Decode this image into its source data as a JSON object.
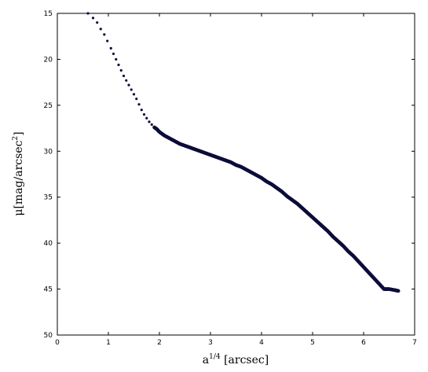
{
  "chart_data": {
    "type": "scatter",
    "title": "",
    "xlabel": "a",
    "xlabel_sup": "1/4",
    "xlabel_tail": " [arcsec]",
    "ylabel": "μ[mag/arcsec",
    "ylabel_sup": "2",
    "ylabel_tail": "]",
    "xlim": [
      0,
      7
    ],
    "ylim": [
      15,
      50
    ],
    "y_inverted": true,
    "xticks": [
      0,
      1,
      2,
      3,
      4,
      5,
      6,
      7
    ],
    "yticks": [
      15,
      20,
      25,
      30,
      35,
      40,
      45,
      50
    ],
    "grid": false,
    "marker_color": "#0d0d3a",
    "x": [
      0.6,
      0.7,
      0.78,
      0.85,
      0.92,
      0.98,
      1.05,
      1.1,
      1.15,
      1.2,
      1.25,
      1.3,
      1.35,
      1.4,
      1.45,
      1.5,
      1.55,
      1.6,
      1.65,
      1.7,
      1.75,
      1.8,
      1.85,
      1.9,
      1.95,
      2.0,
      2.1,
      2.2,
      2.3,
      2.4,
      2.5,
      2.6,
      2.7,
      2.8,
      2.9,
      3.0,
      3.1,
      3.2,
      3.3,
      3.4,
      3.5,
      3.6,
      3.7,
      3.8,
      3.9,
      4.0,
      4.1,
      4.2,
      4.3,
      4.4,
      4.5,
      4.6,
      4.7,
      4.8,
      4.9,
      5.0,
      5.1,
      5.2,
      5.3,
      5.4,
      5.5,
      5.6,
      5.7,
      5.8,
      5.9,
      6.0,
      6.1,
      6.2,
      6.3,
      6.4,
      6.5,
      6.6,
      6.68
    ],
    "y": [
      15.0,
      15.5,
      16.0,
      16.7,
      17.3,
      18.0,
      18.8,
      19.4,
      20.0,
      20.6,
      21.2,
      21.8,
      22.3,
      22.8,
      23.3,
      23.8,
      24.3,
      24.9,
      25.5,
      26.0,
      26.4,
      26.8,
      27.1,
      27.4,
      27.6,
      27.9,
      28.3,
      28.6,
      28.9,
      29.2,
      29.4,
      29.6,
      29.8,
      30.0,
      30.2,
      30.4,
      30.6,
      30.8,
      31.0,
      31.2,
      31.5,
      31.7,
      32.0,
      32.3,
      32.6,
      32.9,
      33.3,
      33.6,
      34.0,
      34.4,
      34.9,
      35.3,
      35.7,
      36.2,
      36.7,
      37.2,
      37.7,
      38.2,
      38.7,
      39.3,
      39.8,
      40.3,
      40.9,
      41.4,
      42.0,
      42.6,
      43.2,
      43.8,
      44.4,
      45.0,
      45.0,
      45.1,
      45.2
    ]
  }
}
